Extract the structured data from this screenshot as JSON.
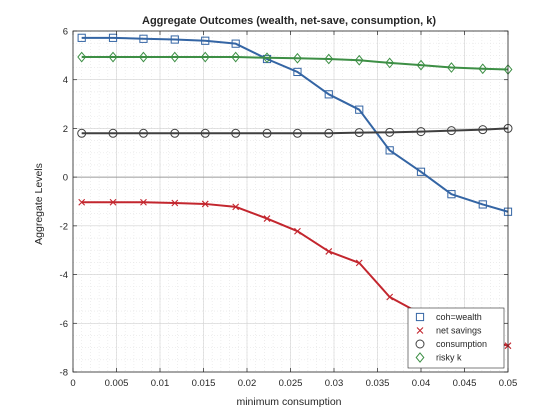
{
  "chart_data": {
    "type": "line",
    "title": "Aggregate Outcomes (wealth, net-save, consumption, k)",
    "xlabel": "minimum consumption",
    "ylabel": "Aggregate Levels",
    "xlim": [
      0,
      0.05
    ],
    "ylim": [
      -8,
      6
    ],
    "xticks": [
      0,
      0.005,
      0.01,
      0.015,
      0.02,
      0.025,
      0.03,
      0.035,
      0.04,
      0.045,
      0.05
    ],
    "xtick_labels": [
      "0",
      "0.005",
      "0.01",
      "0.015",
      "0.02",
      "0.025",
      "0.03",
      "0.035",
      "0.04",
      "0.045",
      "0.05"
    ],
    "yticks": [
      -8,
      -6,
      -4,
      -2,
      0,
      2,
      4,
      6
    ],
    "ytick_labels": [
      "-8",
      "-6",
      "-4",
      "-2",
      "0",
      "2",
      "4",
      "6"
    ],
    "grid": true,
    "minor_grid": true,
    "legend_position": "bottom-right",
    "zero_line": true,
    "x": [
      0.001,
      0.0046,
      0.0081,
      0.0117,
      0.0152,
      0.0187,
      0.0223,
      0.0258,
      0.0294,
      0.0329,
      0.0364,
      0.04,
      0.0435,
      0.0471,
      0.05
    ],
    "series": [
      {
        "name": "coh=wealth",
        "color": "#3465a4",
        "marker": "square",
        "values": [
          5.72,
          5.72,
          5.68,
          5.65,
          5.6,
          5.48,
          4.85,
          4.32,
          3.4,
          2.77,
          1.1,
          0.22,
          -0.7,
          -1.12,
          -1.42
        ]
      },
      {
        "name": "net savings",
        "color": "#c3262e",
        "marker": "x",
        "values": [
          -1.03,
          -1.03,
          -1.03,
          -1.06,
          -1.1,
          -1.22,
          -1.7,
          -2.22,
          -3.05,
          -3.52,
          -4.92,
          -5.62,
          -6.32,
          -6.67,
          -6.92
        ]
      },
      {
        "name": "consumption",
        "color": "#404040",
        "marker": "circle",
        "values": [
          1.8,
          1.8,
          1.8,
          1.8,
          1.8,
          1.8,
          1.8,
          1.8,
          1.8,
          1.83,
          1.84,
          1.87,
          1.91,
          1.95,
          2.0
        ]
      },
      {
        "name": "risky k",
        "color": "#3d8f45",
        "marker": "diamond",
        "values": [
          4.93,
          4.93,
          4.93,
          4.93,
          4.93,
          4.93,
          4.9,
          4.88,
          4.85,
          4.8,
          4.69,
          4.6,
          4.5,
          4.45,
          4.42
        ]
      }
    ]
  }
}
